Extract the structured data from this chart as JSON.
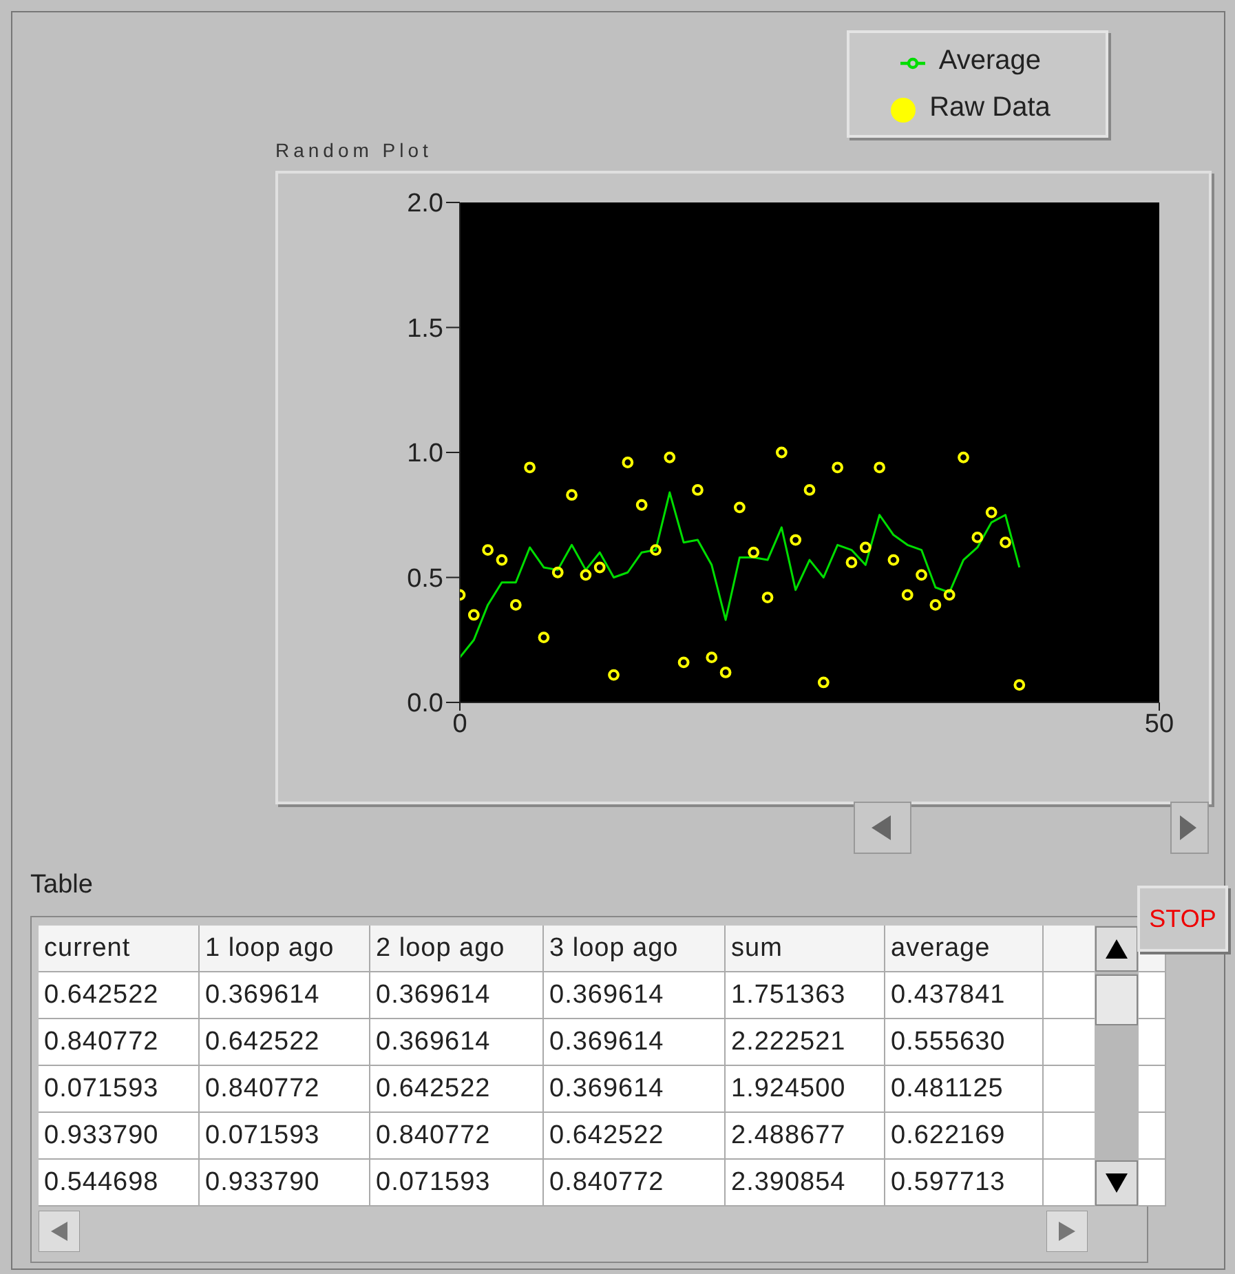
{
  "chart_data": [
    {
      "type": "line",
      "title": "Random Plot",
      "x": [
        0,
        1,
        2,
        3,
        4,
        5,
        6,
        7,
        8,
        9,
        10,
        11,
        12,
        13,
        14,
        15,
        16,
        17,
        18,
        19,
        20,
        21,
        22,
        23,
        24,
        25,
        26,
        27,
        28,
        29,
        30,
        31,
        32,
        33,
        34,
        35,
        36,
        37,
        38,
        39,
        40
      ],
      "xlim": [
        0,
        50
      ],
      "xticks": [
        0,
        50
      ],
      "ylim": [
        0,
        2
      ],
      "yticks": [
        {
          "value": 0,
          "label": "0.0"
        },
        {
          "value": 0.5,
          "label": "0.5"
        },
        {
          "value": 1,
          "label": "1.0"
        },
        {
          "value": 1.5,
          "label": "1.5"
        },
        {
          "value": 2,
          "label": "2.0"
        }
      ],
      "legend": "top right",
      "series": [
        {
          "name": "Raw Data",
          "type": "scatter",
          "color": "#ffff00",
          "marker": "circle",
          "values": [
            0.43,
            0.35,
            0.61,
            0.57,
            0.39,
            0.94,
            0.26,
            0.52,
            0.83,
            0.51,
            0.54,
            0.11,
            0.96,
            0.79,
            0.61,
            0.98,
            0.16,
            0.85,
            0.18,
            0.12,
            0.78,
            0.6,
            0.42,
            1.0,
            0.65,
            0.85,
            0.08,
            0.94,
            0.56,
            0.62,
            0.94,
            0.57,
            0.43,
            0.51,
            0.39,
            0.43,
            0.98,
            0.66,
            0.76,
            0.64,
            0.07
          ]
        },
        {
          "name": "Average",
          "type": "line",
          "color": "#00dd00",
          "marker": "none",
          "values": [
            0.18,
            0.25,
            0.39,
            0.48,
            0.48,
            0.62,
            0.54,
            0.53,
            0.63,
            0.53,
            0.6,
            0.5,
            0.52,
            0.6,
            0.61,
            0.84,
            0.64,
            0.65,
            0.55,
            0.33,
            0.58,
            0.58,
            0.57,
            0.7,
            0.45,
            0.57,
            0.5,
            0.63,
            0.61,
            0.55,
            0.75,
            0.67,
            0.63,
            0.61,
            0.46,
            0.44,
            0.57,
            0.62,
            0.72,
            0.75,
            0.54
          ]
        }
      ]
    },
    {
      "type": "other",
      "title": "Table",
      "categories": [
        "current",
        "1 loop ago",
        "2 loop ago",
        "3 loop ago",
        "sum",
        "average"
      ],
      "annotations": [
        "0.642522",
        "0.369614",
        "0.369614",
        "0.369614",
        "1.751363",
        "0.437841",
        "0.840772",
        "0.642522",
        "0.369614",
        "0.369614",
        "2.222521",
        "0.555630",
        "0.071593",
        "0.840772",
        "0.642522",
        "0.369614",
        "1.924500",
        "0.481125",
        "0.933790",
        "0.071593",
        "0.840772",
        "0.642522",
        "2.488677",
        "0.622169",
        "0.544698",
        "0.933790",
        "0.071593",
        "0.840772",
        "2.390854",
        "0.597713",
        "STOP"
      ]
    }
  ]
}
